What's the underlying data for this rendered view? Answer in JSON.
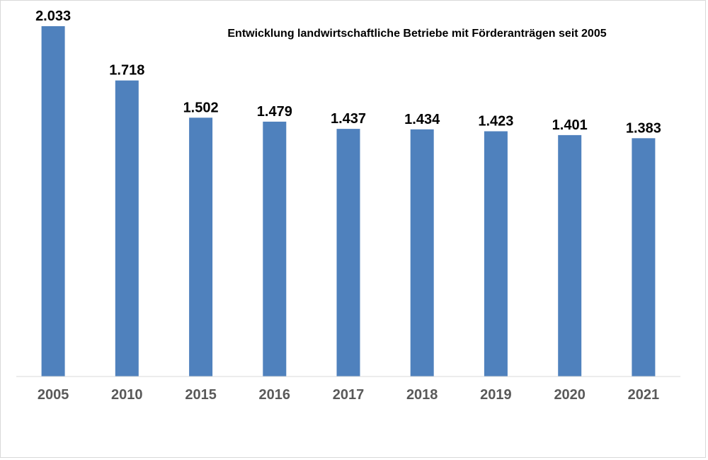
{
  "chart_data": {
    "type": "bar",
    "title": "Entwicklung landwirtschaftliche Betriebe mit Förderanträgen seit 2005",
    "xlabel": "",
    "ylabel": "",
    "categories": [
      "2005",
      "2010",
      "2015",
      "2016",
      "2017",
      "2018",
      "2019",
      "2020",
      "2021"
    ],
    "values": [
      2033,
      1718,
      1502,
      1479,
      1437,
      1434,
      1423,
      1401,
      1383
    ],
    "data_labels": [
      "2.033",
      "1.718",
      "1.502",
      "1.479",
      "1.437",
      "1.434",
      "1.423",
      "1.401",
      "1.383"
    ],
    "ylim": [
      0,
      2033
    ],
    "grid": false,
    "legend": "none",
    "bar_color": "#4F81BD",
    "axis_color": "#D9D9D9",
    "tick_label_color": "#595959",
    "data_label_color": "#000000"
  }
}
